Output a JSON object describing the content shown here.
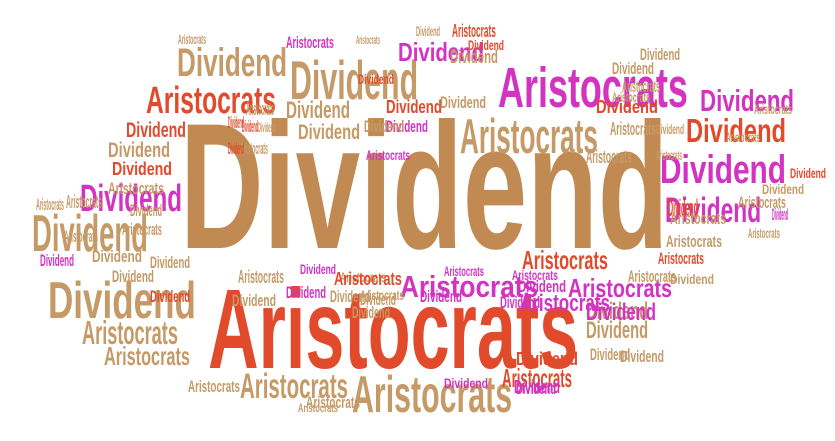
{
  "word_cloud": {
    "colors": {
      "tan": "#c08a52",
      "light_tan": "#c59a66",
      "orange_red": "#e14a2b",
      "magenta": "#d233c1"
    },
    "words": [
      {
        "text": "Dividend",
        "color": "tan"
      },
      {
        "text": "Aristocrats",
        "color": "orange_red"
      },
      {
        "text": "Dividend",
        "color": "light_tan"
      },
      {
        "text": "Aristocrats",
        "color": "magenta"
      },
      {
        "text": "Aristocrats",
        "color": "orange_red"
      },
      {
        "text": "Dividend",
        "color": "light_tan"
      },
      {
        "text": "Aristocrats",
        "color": "light_tan"
      },
      {
        "text": "Dividend",
        "color": "light_tan"
      },
      {
        "text": "Dividend",
        "color": "light_tan"
      },
      {
        "text": "Dividend",
        "color": "magenta"
      },
      {
        "text": "Dividend",
        "color": "magenta"
      },
      {
        "text": "Dividend",
        "color": "orange_red"
      },
      {
        "text": "Dividend",
        "color": "magenta"
      },
      {
        "text": "Dividend",
        "color": "magenta"
      },
      {
        "text": "Dividend",
        "color": "magenta"
      },
      {
        "text": "Aristocrats",
        "color": "light_tan"
      },
      {
        "text": "Aristocrats",
        "color": "light_tan"
      },
      {
        "text": "Aristocrats",
        "color": "light_tan"
      },
      {
        "text": "Aristocrats",
        "color": "magenta"
      },
      {
        "text": "Aristocrats",
        "color": "magenta"
      },
      {
        "text": "Aristocrats",
        "color": "orange_red"
      },
      {
        "text": "Dividend",
        "color": "light_tan"
      },
      {
        "text": "Dividend",
        "color": "light_tan"
      },
      {
        "text": "Aristocrats",
        "color": "light_tan"
      },
      {
        "text": "Dividend",
        "color": "magenta"
      },
      {
        "text": "Dividend",
        "color": "orange_red"
      },
      {
        "text": "Dividend",
        "color": "light_tan"
      },
      {
        "text": "Dividend",
        "color": "orange_red"
      },
      {
        "text": "Aristocrats",
        "color": "light_tan"
      },
      {
        "text": "Aristocrats",
        "color": "light_tan"
      },
      {
        "text": "Dividend",
        "color": "light_tan"
      },
      {
        "text": "Dividend",
        "color": "light_tan"
      },
      {
        "text": "Dividend",
        "color": "orange_red"
      },
      {
        "text": "Dividend",
        "color": "magenta"
      },
      {
        "text": "Dividend",
        "color": "light_tan"
      },
      {
        "text": "Aristocrats",
        "color": "orange_red"
      },
      {
        "text": "Aristocrats",
        "color": "orange_red"
      },
      {
        "text": "Dividend",
        "color": "magenta"
      },
      {
        "text": "Aristocrats",
        "color": "magenta"
      },
      {
        "text": "Dividend",
        "color": "light_tan"
      },
      {
        "text": "Dividend",
        "color": "light_tan"
      },
      {
        "text": "Aristocrats",
        "color": "light_tan"
      },
      {
        "text": "Aristocrats",
        "color": "light_tan"
      },
      {
        "text": "Dividend",
        "color": "orange_red"
      },
      {
        "text": "Dividend",
        "color": "orange_red"
      },
      {
        "text": "Aristocrats",
        "color": "light_tan"
      },
      {
        "text": "Aristocrats",
        "color": "light_tan"
      },
      {
        "text": "Aristocrats",
        "color": "orange_red"
      },
      {
        "text": "Dividend",
        "color": "magenta"
      },
      {
        "text": "Aristocrats",
        "color": "light_tan"
      },
      {
        "text": "Dividend",
        "color": "magenta"
      },
      {
        "text": "Dividend",
        "color": "light_tan"
      },
      {
        "text": "Dividend",
        "color": "light_tan"
      },
      {
        "text": "Aristocrats",
        "color": "light_tan"
      },
      {
        "text": "Dividend",
        "color": "light_tan"
      },
      {
        "text": "Dividend",
        "color": "light_tan"
      },
      {
        "text": "Dividend",
        "color": "orange_red"
      },
      {
        "text": "Dividend",
        "color": "magenta"
      },
      {
        "text": "Dividend",
        "color": "light_tan"
      },
      {
        "text": "Dividend",
        "color": "light_tan"
      },
      {
        "text": "Aristocrats",
        "color": "light_tan"
      },
      {
        "text": "Dividend",
        "color": "light_tan"
      },
      {
        "text": "Aristocrats",
        "color": "light_tan"
      },
      {
        "text": "Aristocrats",
        "color": "orange_red"
      },
      {
        "text": "Aristocrats",
        "color": "magenta"
      },
      {
        "text": "Dividend",
        "color": "magenta"
      },
      {
        "text": "Aristocrats",
        "color": "light_tan"
      },
      {
        "text": "Aristocrats",
        "color": "light_tan"
      },
      {
        "text": "Dividend",
        "color": "orange_red"
      },
      {
        "text": "Dividend",
        "color": "orange_red"
      },
      {
        "text": "Dividend",
        "color": "light_tan"
      },
      {
        "text": "Dividend",
        "color": "light_tan"
      },
      {
        "text": "Dividend",
        "color": "magenta"
      },
      {
        "text": "Dividend",
        "color": "orange_red"
      },
      {
        "text": "Dividend",
        "color": "magenta"
      },
      {
        "text": "Aristocrats",
        "color": "light_tan"
      },
      {
        "text": "Aristocrats",
        "color": "light_tan"
      },
      {
        "text": "Aristocrats",
        "color": "light_tan"
      },
      {
        "text": "Dividend",
        "color": "magenta"
      },
      {
        "text": "Dividend",
        "color": "light_tan"
      },
      {
        "text": "Aristocrats",
        "color": "magenta"
      },
      {
        "text": "Dividend",
        "color": "light_tan"
      },
      {
        "text": "Aristocrats",
        "color": "light_tan"
      },
      {
        "text": "Aristocrats",
        "color": "light_tan"
      },
      {
        "text": "Aristocrats",
        "color": "light_tan"
      },
      {
        "text": "Aristocrats",
        "color": "light_tan"
      },
      {
        "text": "Dividend",
        "color": "light_tan"
      },
      {
        "text": "Aristocrats",
        "color": "light_tan"
      },
      {
        "text": "Aristocrats",
        "color": "magenta"
      },
      {
        "text": "Aristocrats",
        "color": "magenta"
      },
      {
        "text": "Aristocrats",
        "color": "light_tan"
      },
      {
        "text": "Dividend",
        "color": "orange_red"
      },
      {
        "text": "Dividend",
        "color": "light_tan"
      },
      {
        "text": "Dividend",
        "color": "light_tan"
      },
      {
        "text": "Dividend",
        "color": "orange_red"
      },
      {
        "text": "Dividend",
        "color": "light_tan"
      },
      {
        "text": "Dividend",
        "color": "orange_red"
      },
      {
        "text": "Dividend",
        "color": "light_tan"
      },
      {
        "text": "Dividend",
        "color": "magenta"
      },
      {
        "text": "Aristocrats",
        "color": "light_tan"
      },
      {
        "text": "Dividend",
        "color": "orange_red"
      },
      {
        "text": "Aristocrats",
        "color": "light_tan"
      },
      {
        "text": "Dividend",
        "color": "light_tan"
      },
      {
        "text": "Dividend",
        "color": "magenta"
      },
      {
        "text": "Aristocrats",
        "color": "light_tan"
      },
      {
        "text": "Aristocrats",
        "color": "light_tan"
      },
      {
        "text": "Aristocrats",
        "color": "light_tan"
      },
      {
        "text": "Aristocrats",
        "color": "light_tan"
      }
    ]
  }
}
